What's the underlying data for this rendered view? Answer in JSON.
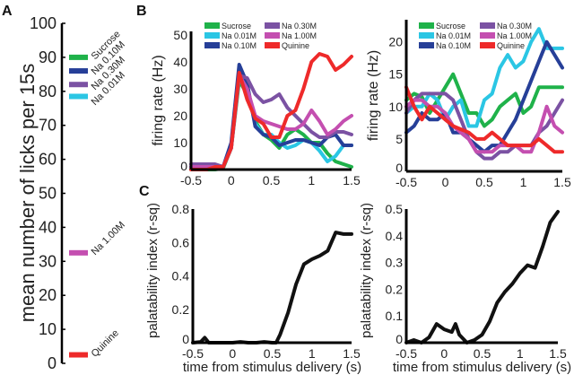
{
  "panel_labels": [
    "A",
    "B",
    "C"
  ],
  "colors": {
    "Sucrose": "#1fb24a",
    "Na 0.01M": "#2bc6e4",
    "Na 0.10M": "#263f98",
    "Na 0.30M": "#7b52a3",
    "Na 1.00M": "#c44fb0",
    "Quinine": "#ee2a2a"
  },
  "chart_data": [
    {
      "panel": "A",
      "type": "bar",
      "ylabel": "mean number of licks per 15s",
      "ylim": [
        0,
        100
      ],
      "yticks": [
        "0",
        "10",
        "20",
        "30",
        "40",
        "50",
        "60",
        "70",
        "80",
        "90",
        "100"
      ],
      "categories": [
        "Sucrose",
        "Na 0.10M",
        "Na 0.30M",
        "Na 0.01M",
        "Na 1.00M",
        "Quinine"
      ],
      "values": [
        90,
        86,
        82,
        78.5,
        32.5,
        2.5
      ]
    },
    {
      "panel": "B-left",
      "type": "line",
      "ylabel": "firing rate (Hz)",
      "xlim": [
        -0.5,
        1.5
      ],
      "ylim": [
        0,
        50
      ],
      "xticks": [
        "-0.5",
        "0",
        "0.5",
        "1",
        "1.5"
      ],
      "yticks": [
        "0",
        "10",
        "20",
        "30",
        "40",
        "50"
      ],
      "legend": [
        "Sucrose",
        "Na 0.01M",
        "Na 0.10M",
        "Na 0.30M",
        "Na 1.00M",
        "Quinine"
      ],
      "x": [
        -0.5,
        -0.4,
        -0.3,
        -0.2,
        -0.1,
        0,
        0.1,
        0.2,
        0.3,
        0.4,
        0.5,
        0.6,
        0.7,
        0.8,
        0.9,
        1.0,
        1.1,
        1.2,
        1.3,
        1.4,
        1.5
      ],
      "series": [
        {
          "name": "Sucrose",
          "values": [
            0,
            0,
            0,
            0,
            0.5,
            8,
            33,
            28,
            18,
            13,
            11,
            8,
            13,
            15,
            13,
            10,
            10,
            6,
            3,
            2,
            1
          ]
        },
        {
          "name": "Na 0.01M",
          "values": [
            1,
            1,
            1,
            1,
            1,
            8,
            35,
            30,
            17,
            13,
            13,
            10,
            8,
            9,
            11,
            10,
            7,
            3,
            5,
            9,
            9
          ]
        },
        {
          "name": "Na 0.10M",
          "values": [
            1,
            1,
            1,
            1,
            1,
            10,
            39,
            32,
            16,
            13,
            12,
            9,
            10,
            11,
            11,
            10,
            9,
            12,
            13,
            9,
            9
          ]
        },
        {
          "name": "Na 0.30M",
          "values": [
            2,
            2,
            2,
            2,
            1,
            8,
            35,
            34,
            28,
            25,
            26,
            28,
            23,
            20,
            17,
            14,
            12,
            12,
            14,
            14,
            13
          ]
        },
        {
          "name": "Na 1.00M",
          "values": [
            1,
            1,
            1,
            1,
            1,
            8,
            35,
            30,
            20,
            18,
            17,
            16,
            15,
            15,
            17,
            22,
            18,
            13,
            15,
            18,
            20
          ]
        },
        {
          "name": "Quinine",
          "values": [
            0,
            0,
            0,
            1,
            1,
            8,
            36,
            26,
            19,
            17,
            12,
            12,
            20,
            22,
            30,
            40,
            43,
            42,
            37,
            39,
            42
          ]
        }
      ]
    },
    {
      "panel": "B-right",
      "type": "line",
      "ylabel": "firing rate (Hz)",
      "xlim": [
        -0.5,
        1.5
      ],
      "ylim": [
        0,
        23
      ],
      "xticks": [
        "-0.5",
        "0",
        "0.5",
        "1",
        "1.5"
      ],
      "yticks": [
        "0",
        "5",
        "10",
        "15",
        "20"
      ],
      "legend": [
        "Sucrose",
        "Na 0.01M",
        "Na 0.10M",
        "Na 0.30M",
        "Na 1.00M",
        "Quinine"
      ],
      "x": [
        -0.5,
        -0.4,
        -0.3,
        -0.2,
        -0.1,
        0,
        0.1,
        0.2,
        0.3,
        0.4,
        0.5,
        0.6,
        0.7,
        0.8,
        0.9,
        1.0,
        1.1,
        1.2,
        1.3,
        1.4,
        1.5
      ],
      "series": [
        {
          "name": "Sucrose",
          "values": [
            11,
            12,
            11.5,
            9,
            11,
            13,
            15,
            12,
            9,
            9,
            7,
            8,
            10,
            11,
            12,
            9,
            10,
            13,
            13,
            13,
            13
          ]
        },
        {
          "name": "Na 0.01M",
          "values": [
            9,
            10,
            10,
            12,
            11,
            8,
            10,
            11,
            7,
            7,
            11,
            12,
            16,
            18,
            16,
            17,
            20,
            22,
            19,
            19,
            19
          ]
        },
        {
          "name": "Na 0.10M",
          "values": [
            6,
            7,
            9,
            8,
            8,
            9,
            6,
            6,
            5,
            4,
            3,
            4,
            4,
            6,
            8,
            11,
            14,
            17,
            20,
            18,
            16
          ]
        },
        {
          "name": "Na 0.30M",
          "values": [
            9,
            11,
            12,
            12,
            12,
            12,
            11,
            8,
            5,
            3,
            2,
            2,
            3,
            3,
            4,
            4,
            4,
            6,
            7,
            9,
            11
          ]
        },
        {
          "name": "Na 1.00M",
          "values": [
            10,
            11,
            11,
            10,
            10,
            9,
            7,
            6,
            5,
            3,
            3,
            3,
            4,
            4,
            4,
            3,
            3,
            6,
            10,
            7,
            6
          ]
        },
        {
          "name": "Quinine",
          "values": [
            13,
            10,
            8,
            10,
            9,
            8,
            7,
            6.5,
            6,
            5,
            5,
            6,
            5,
            4,
            4,
            4,
            4,
            5,
            4,
            3,
            3
          ]
        }
      ]
    },
    {
      "panel": "C-left",
      "type": "line",
      "xlabel": "time from stimulus delivery (s)",
      "ylabel": "palatability index (r-sq)",
      "xlim": [
        -0.5,
        1.5
      ],
      "ylim": [
        0,
        0.8
      ],
      "xticks": [
        "-0.5",
        "0",
        "0.5",
        "1",
        "1.5"
      ],
      "yticks": [
        "0",
        "0.2",
        "0.4",
        "0.6",
        "0.8"
      ],
      "x": [
        -0.5,
        -0.4,
        -0.35,
        -0.3,
        -0.2,
        -0.1,
        0,
        0.1,
        0.2,
        0.3,
        0.4,
        0.5,
        0.55,
        0.6,
        0.7,
        0.8,
        0.9,
        1.0,
        1.1,
        1.2,
        1.3,
        1.4,
        1.5
      ],
      "series": [
        {
          "name": "palatability",
          "values": [
            0,
            0.005,
            0.03,
            0,
            0,
            0,
            0,
            0.005,
            0,
            0,
            0.005,
            0,
            0,
            0.05,
            0.18,
            0.35,
            0.47,
            0.5,
            0.52,
            0.55,
            0.66,
            0.65,
            0.65
          ]
        }
      ]
    },
    {
      "panel": "C-right",
      "type": "line",
      "xlabel": "time from stimulus delivery (s)",
      "ylabel": "palatability index (r-sq)",
      "xlim": [
        -0.5,
        1.5
      ],
      "ylim": [
        0,
        0.5
      ],
      "xticks": [
        "-0.5",
        "0",
        "0.5",
        "1",
        "1.5"
      ],
      "yticks": [
        "0",
        "0.1",
        "0.2",
        "0.3",
        "0.4",
        "0.5"
      ],
      "x": [
        -0.5,
        -0.4,
        -0.3,
        -0.2,
        -0.1,
        0,
        0.1,
        0.15,
        0.2,
        0.3,
        0.4,
        0.5,
        0.6,
        0.7,
        0.8,
        0.9,
        1.0,
        1.1,
        1.2,
        1.3,
        1.4,
        1.5
      ],
      "series": [
        {
          "name": "palatability",
          "values": [
            0,
            0.01,
            0,
            0.02,
            0.07,
            0.05,
            0.04,
            0.07,
            0.03,
            0,
            0.01,
            0.03,
            0.08,
            0.15,
            0.19,
            0.22,
            0.26,
            0.29,
            0.28,
            0.36,
            0.45,
            0.49
          ]
        }
      ]
    }
  ]
}
